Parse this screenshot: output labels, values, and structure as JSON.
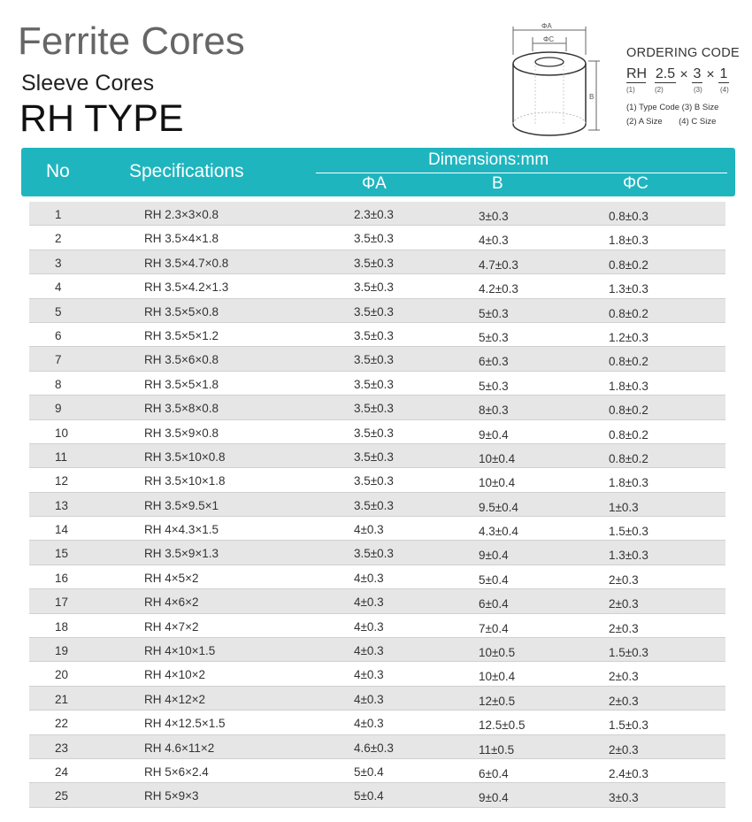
{
  "title": "Ferrite Cores",
  "subtitle": "Sleeve Cores",
  "type": "RH TYPE",
  "diagram": {
    "label_a": "ΦA",
    "label_c": "ΦC",
    "label_b": "B"
  },
  "ordering": {
    "title": "ORDERING CODE",
    "parts": [
      "RH",
      "2.5",
      "3",
      "1"
    ],
    "sep": "×",
    "nums": [
      "(1)",
      "(2)",
      "(3)",
      "(4)"
    ],
    "legend1": "(1) Type Code (3) B Size",
    "legend2": "(2) A Size       (4) C Size"
  },
  "header": {
    "no": "No",
    "spec": "Specifications",
    "dim": "Dimensions:mm",
    "a": "ΦA",
    "b": "B",
    "c": "ΦC"
  },
  "accent": "#1fb5bf",
  "rows": [
    [
      "1",
      "RH 2.3×3×0.8",
      "2.3±0.3",
      "3±0.3",
      "0.8±0.3"
    ],
    [
      "2",
      "RH 3.5×4×1.8",
      "3.5±0.3",
      "4±0.3",
      "1.8±0.3"
    ],
    [
      "3",
      "RH 3.5×4.7×0.8",
      "3.5±0.3",
      "4.7±0.3",
      "0.8±0.2"
    ],
    [
      "4",
      "RH 3.5×4.2×1.3",
      "3.5±0.3",
      "4.2±0.3",
      "1.3±0.3"
    ],
    [
      "5",
      "RH 3.5×5×0.8",
      "3.5±0.3",
      "5±0.3",
      "0.8±0.2"
    ],
    [
      "6",
      "RH 3.5×5×1.2",
      "3.5±0.3",
      "5±0.3",
      "1.2±0.3"
    ],
    [
      "7",
      "RH 3.5×6×0.8",
      "3.5±0.3",
      "6±0.3",
      "0.8±0.2"
    ],
    [
      "8",
      "RH 3.5×5×1.8",
      "3.5±0.3",
      "5±0.3",
      "1.8±0.3"
    ],
    [
      "9",
      "RH 3.5×8×0.8",
      "3.5±0.3",
      "8±0.3",
      "0.8±0.2"
    ],
    [
      "10",
      "RH 3.5×9×0.8",
      "3.5±0.3",
      "9±0.4",
      "0.8±0.2"
    ],
    [
      "11",
      "RH 3.5×10×0.8",
      "3.5±0.3",
      "10±0.4",
      "0.8±0.2"
    ],
    [
      "12",
      "RH 3.5×10×1.8",
      "3.5±0.3",
      "10±0.4",
      "1.8±0.3"
    ],
    [
      "13",
      "RH 3.5×9.5×1",
      "3.5±0.3",
      "9.5±0.4",
      "1±0.3"
    ],
    [
      "14",
      "RH 4×4.3×1.5",
      "4±0.3",
      "4.3±0.4",
      "1.5±0.3"
    ],
    [
      "15",
      "RH 3.5×9×1.3",
      "3.5±0.3",
      "9±0.4",
      "1.3±0.3"
    ],
    [
      "16",
      "RH 4×5×2",
      "4±0.3",
      "5±0.4",
      "2±0.3"
    ],
    [
      "17",
      "RH 4×6×2",
      "4±0.3",
      "6±0.4",
      "2±0.3"
    ],
    [
      "18",
      "RH 4×7×2",
      "4±0.3",
      "7±0.4",
      "2±0.3"
    ],
    [
      "19",
      "RH 4×10×1.5",
      "4±0.3",
      "10±0.5",
      "1.5±0.3"
    ],
    [
      "20",
      "RH 4×10×2",
      "4±0.3",
      "10±0.4",
      "2±0.3"
    ],
    [
      "21",
      "RH 4×12×2",
      "4±0.3",
      "12±0.5",
      "2±0.3"
    ],
    [
      "22",
      "RH 4×12.5×1.5",
      "4±0.3",
      "12.5±0.5",
      "1.5±0.3"
    ],
    [
      "23",
      "RH 4.6×11×2",
      "4.6±0.3",
      "11±0.5",
      "2±0.3"
    ],
    [
      "24",
      "RH 5×6×2.4",
      "5±0.4",
      "6±0.4",
      "2.4±0.3"
    ],
    [
      "25",
      "RH 5×9×3",
      "5±0.4",
      "9±0.4",
      "3±0.3"
    ]
  ]
}
